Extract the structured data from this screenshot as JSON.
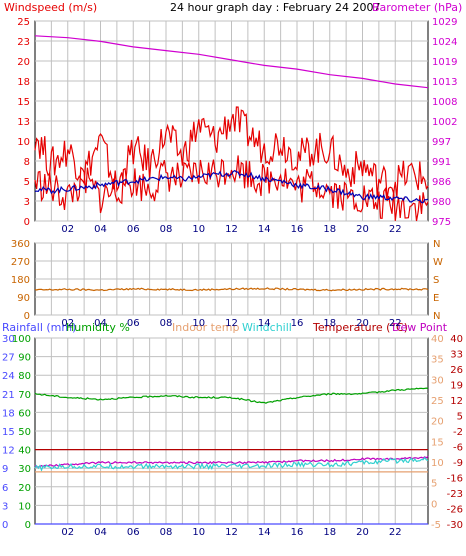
{
  "title": "24 hour graph day : February 24 2007",
  "colors": {
    "wind": "#e60000",
    "wind_avg": "#0000b4",
    "baro": "#d000d0",
    "winddir": "#c86400",
    "rain": "#4a4aff",
    "humidity": "#00a000",
    "indoor": "#e6a070",
    "windchill": "#30d0d0",
    "temp": "#b40000",
    "dew": "#c000c0",
    "grid": "#c0c0c0",
    "frame": "#000000"
  },
  "chart_data": [
    {
      "type": "line",
      "panel": "wind-baro",
      "left_label": "Windspeed (m/s)",
      "right_label": "Barometer (hPa)",
      "x_ticks": [
        "02",
        "04",
        "06",
        "08",
        "10",
        "12",
        "14",
        "16",
        "18",
        "20",
        "22"
      ],
      "xlim": [
        0,
        24
      ],
      "left_ticks": [
        "0",
        "3",
        "5",
        "8",
        "10",
        "13",
        "15",
        "18",
        "20",
        "23",
        "25"
      ],
      "left_ylim": [
        0,
        25
      ],
      "right_ticks": [
        "975",
        "980",
        "986",
        "991",
        "997",
        "1002",
        "1008",
        "1013",
        "1019",
        "1024",
        "1029"
      ],
      "right_ylim": [
        975,
        1029
      ],
      "series": [
        {
          "axis": "right",
          "color_key": "baro",
          "x": [
            0,
            2,
            4,
            6,
            8,
            10,
            12,
            14,
            16,
            18,
            20,
            22,
            24
          ],
          "values": [
            1025,
            1024.5,
            1023.5,
            1022,
            1021,
            1020,
            1018.5,
            1017,
            1016,
            1014.5,
            1013.5,
            1012,
            1011
          ]
        },
        {
          "axis": "left",
          "color_key": "wind",
          "x": [
            0,
            1,
            2,
            3,
            4,
            5,
            6,
            7,
            8,
            9,
            10,
            11,
            12,
            13,
            14,
            15,
            16,
            17,
            18,
            19,
            20,
            21,
            22,
            23,
            24
          ],
          "values": [
            11,
            7,
            9,
            6,
            10,
            4,
            9,
            7,
            11,
            8,
            12,
            10,
            13,
            11,
            9,
            10,
            8,
            9,
            9,
            6,
            7,
            5,
            5,
            6,
            5
          ]
        },
        {
          "axis": "left",
          "color_key": "wind",
          "x": [
            0,
            1,
            2,
            3,
            4,
            5,
            6,
            7,
            8,
            9,
            10,
            11,
            12,
            13,
            14,
            15,
            16,
            17,
            18,
            19,
            20,
            21,
            22,
            23,
            24
          ],
          "values": [
            5,
            4,
            3,
            5,
            3,
            4,
            5,
            4,
            6,
            5,
            6,
            6,
            7,
            6,
            5,
            6,
            4,
            5,
            4,
            3,
            3,
            2,
            2,
            2,
            2
          ]
        },
        {
          "axis": "left",
          "color_key": "wind_avg",
          "x": [
            0,
            1,
            2,
            3,
            4,
            5,
            6,
            7,
            8,
            9,
            10,
            11,
            12,
            13,
            14,
            15,
            16,
            17,
            18,
            19,
            20,
            21,
            22,
            23,
            24
          ],
          "values": [
            4,
            3.8,
            4,
            4.2,
            4.5,
            4.8,
            5,
            5.2,
            5.5,
            5.2,
            5.5,
            5.8,
            6,
            5.8,
            5.3,
            5,
            4.5,
            4.2,
            4,
            3.5,
            3,
            3,
            2.8,
            2.6,
            2.5
          ]
        }
      ]
    },
    {
      "type": "line",
      "panel": "wind-direction",
      "x_ticks": [
        "02",
        "04",
        "06",
        "08",
        "10",
        "12",
        "14",
        "16",
        "18",
        "20",
        "22"
      ],
      "xlim": [
        0,
        24
      ],
      "left_ticks": [
        "0",
        "90",
        "180",
        "270",
        "360"
      ],
      "left_ylim": [
        0,
        360
      ],
      "right_ticks": [
        "N",
        "E",
        "S",
        "W",
        "N"
      ],
      "series": [
        {
          "axis": "left",
          "color_key": "winddir",
          "x": [
            0,
            2,
            4,
            6,
            8,
            10,
            12,
            14,
            16,
            18,
            20,
            22,
            24
          ],
          "values": [
            125,
            128,
            125,
            130,
            128,
            126,
            130,
            132,
            128,
            125,
            128,
            130,
            128
          ]
        }
      ]
    },
    {
      "type": "line",
      "panel": "temp-humidity-rain",
      "series_labels": [
        "Rainfall (mm)",
        "Humidity %",
        "Indoor temp",
        "Windchill",
        "Temperature (°C)",
        "Dew Point"
      ],
      "x_ticks": [
        "02",
        "04",
        "06",
        "08",
        "10",
        "12",
        "14",
        "16",
        "18",
        "20",
        "22"
      ],
      "xlim": [
        0,
        24
      ],
      "rain_ticks": [
        "0",
        "3",
        "6",
        "9",
        "12",
        "15",
        "18",
        "21",
        "24",
        "27",
        "30"
      ],
      "rain_ylim": [
        0,
        30
      ],
      "humidity_ticks": [
        "0",
        "10",
        "20",
        "30",
        "40",
        "50",
        "60",
        "70",
        "80",
        "90",
        "100"
      ],
      "humidity_ylim": [
        0,
        100
      ],
      "indoor_ticks": [
        "-5",
        "0",
        "5",
        "10",
        "15",
        "20",
        "25",
        "30",
        "35",
        "40"
      ],
      "indoor_ylim": [
        -5,
        40
      ],
      "temp_ticks": [
        "-30",
        "-26",
        "-23",
        "-16",
        "-9",
        "-6",
        "-2",
        "5",
        "12",
        "19",
        "26",
        "33",
        "40"
      ],
      "temp_ylim": [
        -30,
        40
      ],
      "series": [
        {
          "axis": "humidity",
          "color_key": "humidity",
          "x": [
            0,
            2,
            4,
            6,
            8,
            10,
            12,
            14,
            16,
            18,
            20,
            22,
            24
          ],
          "values": [
            70,
            68,
            67,
            68,
            69,
            68,
            68,
            65,
            68,
            70,
            70,
            72,
            73
          ]
        },
        {
          "axis": "humidity",
          "color_key": "temp",
          "x": [
            0,
            2,
            4,
            6,
            8,
            10,
            12,
            14,
            16,
            18,
            20,
            22,
            24
          ],
          "values": [
            40,
            40,
            40,
            40,
            40,
            40,
            40,
            40,
            40,
            40,
            40,
            40,
            40
          ]
        },
        {
          "axis": "humidity",
          "color_key": "dew",
          "x": [
            0,
            2,
            4,
            6,
            8,
            10,
            12,
            14,
            16,
            18,
            20,
            22,
            24
          ],
          "values": [
            31,
            32,
            33,
            33,
            33,
            33,
            33,
            33,
            34,
            34,
            35,
            35,
            36
          ]
        },
        {
          "axis": "humidity",
          "color_key": "windchill",
          "x": [
            0,
            2,
            4,
            6,
            8,
            10,
            12,
            14,
            16,
            18,
            20,
            22,
            24
          ],
          "values": [
            30,
            31,
            31,
            31,
            31,
            31,
            31,
            31,
            32,
            32,
            33,
            34,
            35
          ]
        },
        {
          "axis": "humidity",
          "color_key": "indoor",
          "x": [
            0,
            2,
            4,
            6,
            8,
            10,
            12,
            14,
            16,
            18,
            20,
            22,
            24
          ],
          "values": [
            28,
            28,
            28,
            28,
            28,
            28,
            28,
            28,
            28,
            28,
            28,
            28,
            28
          ]
        },
        {
          "axis": "rain",
          "color_key": "rain",
          "x": [
            0,
            24
          ],
          "values": [
            0,
            0
          ]
        }
      ]
    }
  ]
}
